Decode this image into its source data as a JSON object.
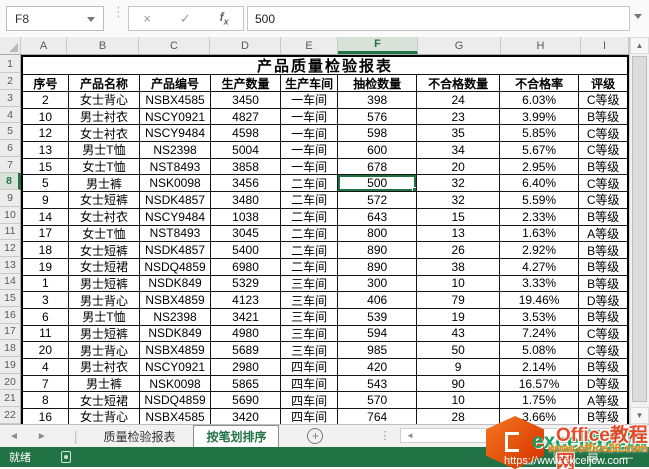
{
  "formula_bar": {
    "name_box": "F8",
    "value": "500",
    "cancel_icon": "×",
    "enter_icon": "✓"
  },
  "grid": {
    "column_letters": [
      "A",
      "B",
      "C",
      "D",
      "E",
      "F",
      "G",
      "H",
      "I"
    ],
    "row_numbers": [
      1,
      2,
      3,
      4,
      5,
      6,
      7,
      8,
      9,
      10,
      11,
      12,
      13,
      14,
      15,
      16,
      17,
      18,
      19,
      20,
      21,
      22
    ],
    "title": "产品质量检验报表",
    "table_headers": [
      "序号",
      "产品名称",
      "产品编号",
      "生产数量",
      "生产车间",
      "抽检数量",
      "不合格数量",
      "不合格率",
      "评级"
    ],
    "rows": [
      [
        "2",
        "女士背心",
        "NSBX4585",
        "3450",
        "一车间",
        "398",
        "24",
        "6.03%",
        "C等级"
      ],
      [
        "10",
        "男士衬衣",
        "NSCY0921",
        "4827",
        "一车间",
        "576",
        "23",
        "3.99%",
        "B等级"
      ],
      [
        "12",
        "女士衬衣",
        "NSCY9484",
        "4598",
        "一车间",
        "598",
        "35",
        "5.85%",
        "C等级"
      ],
      [
        "13",
        "男士T恤",
        "NS2398",
        "5004",
        "一车间",
        "600",
        "34",
        "5.67%",
        "C等级"
      ],
      [
        "15",
        "女士T恤",
        "NST8493",
        "3858",
        "一车间",
        "678",
        "20",
        "2.95%",
        "B等级"
      ],
      [
        "5",
        "男士裤",
        "NSK0098",
        "3456",
        "二车间",
        "500",
        "32",
        "6.40%",
        "C等级"
      ],
      [
        "9",
        "女士短裤",
        "NSDK4857",
        "3480",
        "二车间",
        "572",
        "32",
        "5.59%",
        "C等级"
      ],
      [
        "14",
        "女士衬衣",
        "NSCY9484",
        "1038",
        "二车间",
        "643",
        "15",
        "2.33%",
        "B等级"
      ],
      [
        "17",
        "女士T恤",
        "NST8493",
        "3045",
        "二车间",
        "800",
        "13",
        "1.63%",
        "A等级"
      ],
      [
        "18",
        "女士短裤",
        "NSDK4857",
        "5400",
        "二车间",
        "890",
        "26",
        "2.92%",
        "B等级"
      ],
      [
        "19",
        "女士短裙",
        "NSDQ4859",
        "6980",
        "二车间",
        "890",
        "38",
        "4.27%",
        "B等级"
      ],
      [
        "1",
        "男士短裤",
        "NSDK849",
        "5329",
        "三车间",
        "300",
        "10",
        "3.33%",
        "B等级"
      ],
      [
        "3",
        "男士背心",
        "NSBX4859",
        "4123",
        "三车间",
        "406",
        "79",
        "19.46%",
        "D等级"
      ],
      [
        "6",
        "男士T恤",
        "NS2398",
        "3421",
        "三车间",
        "539",
        "19",
        "3.53%",
        "B等级"
      ],
      [
        "11",
        "男士短裤",
        "NSDK849",
        "4980",
        "三车间",
        "594",
        "43",
        "7.24%",
        "C等级"
      ],
      [
        "20",
        "男士背心",
        "NSBX4859",
        "5689",
        "三车间",
        "985",
        "50",
        "5.08%",
        "C等级"
      ],
      [
        "4",
        "男士衬衣",
        "NSCY0921",
        "2980",
        "四车间",
        "420",
        "9",
        "2.14%",
        "B等级"
      ],
      [
        "7",
        "男士裤",
        "NSK0098",
        "5865",
        "四车间",
        "543",
        "90",
        "16.57%",
        "D等级"
      ],
      [
        "8",
        "女士短裙",
        "NSDQ4859",
        "5690",
        "四车间",
        "570",
        "10",
        "1.75%",
        "A等级"
      ],
      [
        "16",
        "女士背心",
        "NSBX4585",
        "3420",
        "四车间",
        "764",
        "28",
        "3.66%",
        "B等级"
      ]
    ]
  },
  "sheet_tabs": {
    "tab1_label": "质量检验报表",
    "tab2_label": "按笔划排序",
    "new_sheet_label": "+"
  },
  "status_bar": {
    "ready_label": "就绪"
  },
  "watermark": {
    "site_green": "excel教程网",
    "site_red": "Office教程网",
    "url_orange": "www.office26.com",
    "url_white": "https://www.exceljcw.com"
  },
  "colors": {
    "excel_green": "#217346",
    "selection_border": "#217346",
    "header_highlight": "#d8e2d8",
    "watermark_orange": "#d83b01"
  }
}
